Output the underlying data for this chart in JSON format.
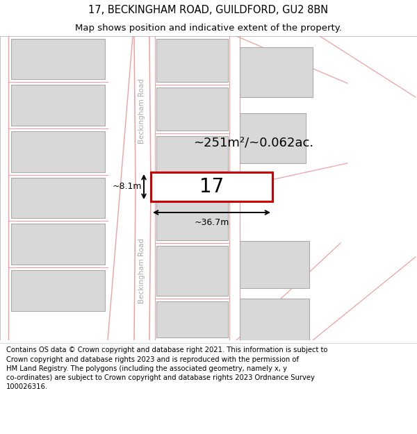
{
  "title": "17, BECKINGHAM ROAD, GUILDFORD, GU2 8BN",
  "subtitle": "Map shows position and indicative extent of the property.",
  "footer": "Contains OS data © Crown copyright and database right 2021. This information is subject to\nCrown copyright and database rights 2023 and is reproduced with the permission of\nHM Land Registry. The polygons (including the associated geometry, namely x, y\nco-ordinates) are subject to Crown copyright and database rights 2023 Ordnance Survey\n100026316.",
  "map_bg": "#ffffff",
  "road_color": "#f0a0a0",
  "building_fill": "#d8d8d8",
  "building_edge": "#aaaaaa",
  "highlight_fill": "#ffffff",
  "highlight_edge": "#cc0000",
  "property_label": "17",
  "area_label": "~251m²/~0.062ac.",
  "width_label": "~36.7m",
  "height_label": "~8.1m",
  "title_fontsize": 10.5,
  "subtitle_fontsize": 9.5,
  "footer_fontsize": 7.2,
  "road_label_color": "#aaaaaa",
  "road_label_size": 7.5
}
